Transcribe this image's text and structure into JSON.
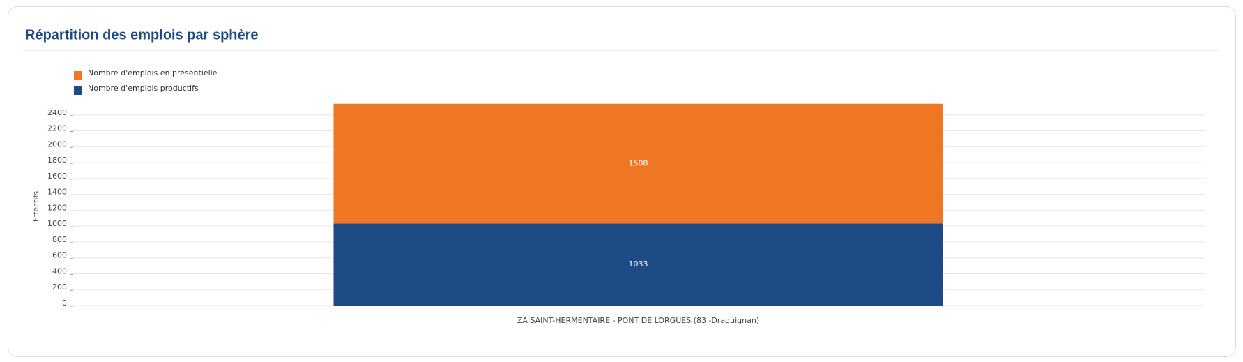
{
  "chart_data": {
    "type": "stacked-bar",
    "title": "Répartition des emplois par sphère",
    "y_label": "Effectifs",
    "categories": [
      "ZA SAINT-HERMENTAIRE - PONT DE LORGUES (83 -Draguignan)"
    ],
    "series": [
      {
        "name": "Nombre d'emplois en présentielle",
        "color": "#ef7622",
        "values": [
          1508
        ]
      },
      {
        "name": "Nombre d'emplois productifs",
        "color": "#1e4a86",
        "values": [
          1033
        ]
      }
    ],
    "ylim": [
      0,
      2600
    ],
    "yticks": [
      0,
      200,
      400,
      600,
      800,
      1000,
      1200,
      1400,
      1600,
      1800,
      2000,
      2200,
      2400
    ],
    "grid": true
  }
}
